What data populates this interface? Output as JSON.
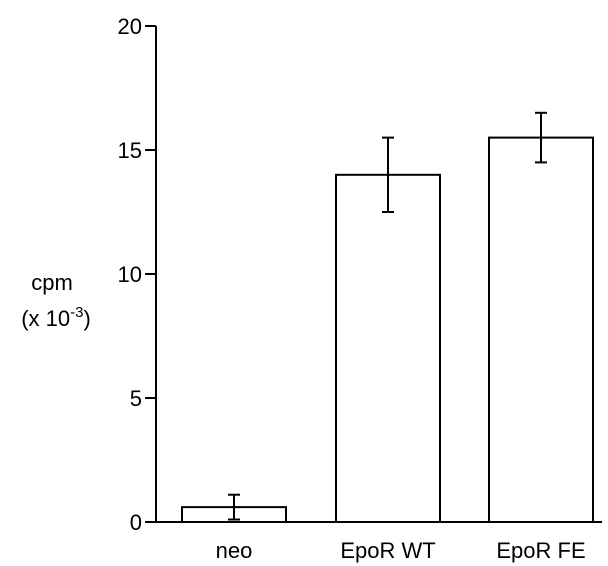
{
  "chart_data": {
    "type": "bar",
    "categories": [
      "neo",
      "EpoR WT",
      "EpoR FE"
    ],
    "values": [
      0.6,
      14.0,
      15.5
    ],
    "error_low": [
      0.1,
      12.5,
      14.5
    ],
    "error_high": [
      1.1,
      15.5,
      16.5
    ],
    "ylabel_line1": "cpm",
    "ylabel_line2_prefix": "(x 10",
    "ylabel_line2_sup": "-3",
    "ylabel_line2_suffix": ")",
    "ylim": [
      0,
      20
    ],
    "yticks": [
      0,
      5,
      10,
      15,
      20
    ],
    "ytick_labels": [
      "0",
      "5",
      "10",
      "15",
      "20"
    ],
    "grid": false,
    "bar_fill": "#ffffff",
    "stroke_color": "#000000"
  }
}
